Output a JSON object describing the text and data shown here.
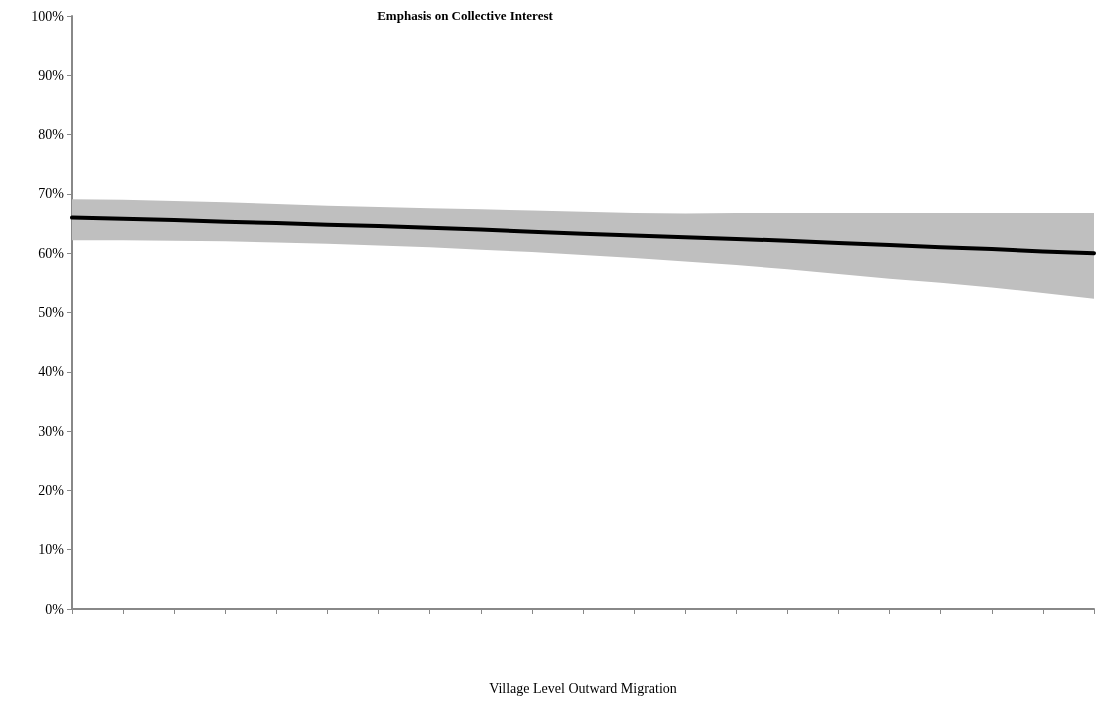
{
  "chart_data": {
    "type": "line",
    "title": "Emphasis on Collective Interest",
    "xlabel": "Village Level Outward Migration",
    "categories": [
      null,
      null,
      null,
      null,
      null,
      null,
      null,
      null,
      null,
      null,
      null,
      null,
      null,
      null,
      null,
      null,
      null,
      null,
      null,
      null,
      null
    ],
    "series": [
      {
        "color": "#000000",
        "values": [
          66.0,
          65.8,
          65.6,
          65.3,
          65.1,
          64.8,
          64.6,
          64.3,
          64.0,
          63.6,
          63.3,
          63.0,
          62.7,
          62.4,
          62.1,
          61.7,
          61.4,
          61.0,
          60.7,
          60.3,
          60.0
        ],
        "upper": [
          69.1,
          69.0,
          68.8,
          68.6,
          68.3,
          68.0,
          67.8,
          67.6,
          67.4,
          67.2,
          67.0,
          66.8,
          66.7,
          66.8,
          66.8,
          66.8,
          66.8,
          66.8,
          66.8,
          66.8,
          66.8
        ],
        "lower": [
          62.2,
          62.2,
          62.1,
          62.0,
          61.8,
          61.6,
          61.3,
          61.0,
          60.6,
          60.2,
          59.7,
          59.2,
          58.6,
          58.0,
          57.3,
          56.5,
          55.7,
          55.0,
          54.2,
          53.3,
          52.3
        ]
      }
    ],
    "ylim": [
      0,
      100
    ],
    "yticks": [
      {
        "value": 0,
        "label": "0%"
      },
      {
        "value": 10,
        "label": "10%"
      },
      {
        "value": 20,
        "label": "20%"
      },
      {
        "value": 30,
        "label": "30%"
      },
      {
        "value": 40,
        "label": "40%"
      },
      {
        "value": 50,
        "label": "50%"
      },
      {
        "value": 60,
        "label": "60%"
      },
      {
        "value": 70,
        "label": "70%"
      },
      {
        "value": 80,
        "label": "80%"
      },
      {
        "value": 90,
        "label": "90%"
      },
      {
        "value": 100,
        "label": "100%"
      }
    ],
    "grid": false,
    "marker": "none",
    "line_style": "solid"
  }
}
